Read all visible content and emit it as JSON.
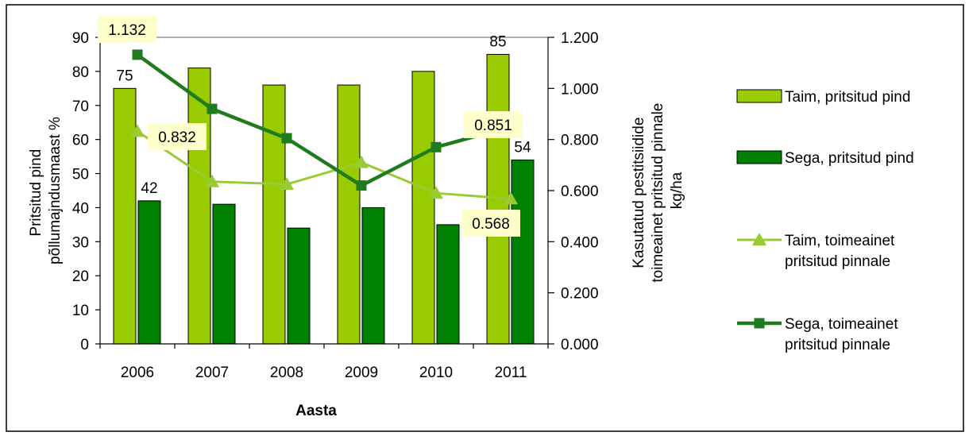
{
  "chart_data": {
    "type": "bar",
    "categories": [
      "2006",
      "2007",
      "2008",
      "2009",
      "2010",
      "2011"
    ],
    "xlabel": "Aasta",
    "ylabel_left": [
      "Pritsitud pind",
      "põllumajndusmaast %"
    ],
    "ylabel_right": [
      "Kasutatud pestitsiidide",
      "toimeainet pritsitud pinnale",
      "kg/ha"
    ],
    "ylim_left": [
      0,
      90
    ],
    "yticks_left": [
      "0",
      "10",
      "20",
      "30",
      "40",
      "50",
      "60",
      "70",
      "80",
      "90"
    ],
    "ylim_right": [
      0,
      1.2
    ],
    "yticks_right": [
      "0.000",
      "0.200",
      "0.400",
      "0.600",
      "0.800",
      "1.000",
      "1.200"
    ],
    "legend_position": "right",
    "series": [
      {
        "name": "Taim, pritsitud pind",
        "kind": "bar",
        "axis": "left",
        "color": "#99cc00",
        "values": [
          75,
          81,
          76,
          76,
          80,
          85
        ],
        "data_labels": [
          "75",
          "",
          "",
          "",
          "",
          "85"
        ]
      },
      {
        "name": "Sega, pritsitud pind",
        "kind": "bar",
        "axis": "left",
        "color": "#008000",
        "values": [
          42,
          41,
          34,
          40,
          35,
          54
        ],
        "data_labels": [
          "42",
          "",
          "",
          "",
          "",
          "54"
        ]
      },
      {
        "name_lines": [
          "Taim, toimeainet",
          "pritsitud pinnale"
        ],
        "kind": "line",
        "marker": "triangle",
        "axis": "right",
        "color": "#99cc33",
        "values": [
          0.832,
          0.635,
          0.625,
          0.71,
          0.59,
          0.568
        ],
        "data_labels": [
          "0.832",
          "",
          "",
          "",
          "",
          "0.568"
        ]
      },
      {
        "name_lines": [
          "Sega, toimeainet",
          "pritsitud pinnale"
        ],
        "kind": "line",
        "marker": "square",
        "axis": "right",
        "color": "#1e7b1e",
        "values": [
          1.132,
          0.92,
          0.805,
          0.62,
          0.77,
          0.851
        ],
        "data_labels": [
          "1.132",
          "",
          "",
          "",
          "",
          "0.851"
        ]
      }
    ]
  }
}
